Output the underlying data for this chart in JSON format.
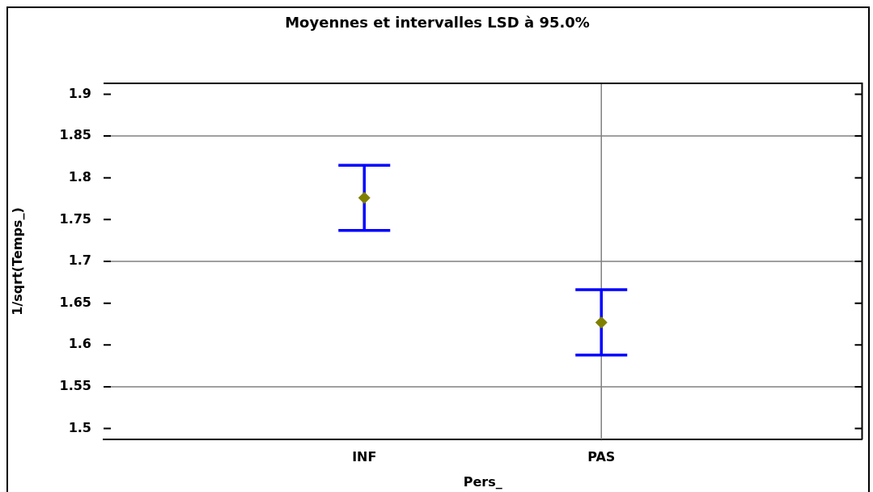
{
  "chart_data": {
    "type": "scatter",
    "title": "Moyennes et intervalles LSD à 95.0%",
    "xlabel": "Pers_",
    "ylabel": "1/sqrt(Temps_)",
    "categories": [
      "INF",
      "PAS"
    ],
    "values": [
      1.776,
      1.627
    ],
    "errors": [
      0.039,
      0.039
    ],
    "color": "#808000",
    "marker": "diamond",
    "ylim": [
      1.487,
      1.913
    ],
    "yticks": [
      1.5,
      1.55,
      1.6,
      1.65,
      1.7,
      1.75,
      1.8,
      1.85,
      1.9
    ],
    "ref_lines": [
      {
        "axis": "y",
        "value": 1.55,
        "color": "#808080"
      },
      {
        "axis": "y",
        "value": 1.7,
        "color": "#808080"
      },
      {
        "axis": "y",
        "value": 1.85,
        "color": "#808080"
      },
      {
        "axis": "x",
        "value": "PAS",
        "color": "#808080"
      }
    ]
  }
}
